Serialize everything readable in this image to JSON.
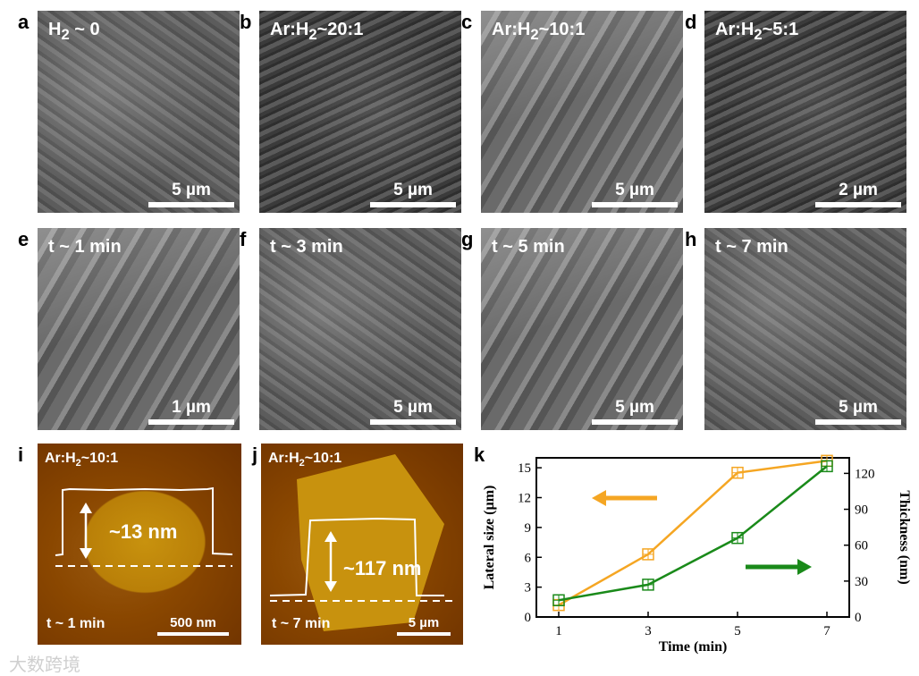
{
  "sem_panels": [
    {
      "letter": "a",
      "condition_html": "H<sub>2</sub> ~ 0",
      "scale": "5 µm"
    },
    {
      "letter": "b",
      "condition_html": "Ar:H<sub>2</sub>~20:1",
      "scale": "5 µm"
    },
    {
      "letter": "c",
      "condition_html": "Ar:H<sub>2</sub>~10:1",
      "scale": "5 µm"
    },
    {
      "letter": "d",
      "condition_html": "Ar:H<sub>2</sub>~5:1",
      "scale": "2 µm"
    },
    {
      "letter": "e",
      "condition_html": "t ~ 1 min",
      "scale": "1 µm"
    },
    {
      "letter": "f",
      "condition_html": "t ~ 3 min",
      "scale": "5 µm"
    },
    {
      "letter": "g",
      "condition_html": "t ~ 5 min",
      "scale": "5 µm"
    },
    {
      "letter": "h",
      "condition_html": "t ~ 7 min",
      "scale": "5 µm"
    }
  ],
  "afm_panels": [
    {
      "letter": "i",
      "condition": "Ar:H",
      "condition_sub": "2",
      "condition_tail": "~10:1",
      "height": "~13 nm",
      "time": "t ~ 1 min",
      "scale": "500 nm"
    },
    {
      "letter": "j",
      "condition": "Ar:H",
      "condition_sub": "2",
      "condition_tail": "~10:1",
      "height": "~117 nm",
      "time": "t ~ 7 min",
      "scale": "5 µm"
    }
  ],
  "chart_label": "k",
  "chart_data": {
    "type": "line",
    "x": [
      1,
      3,
      5,
      7
    ],
    "xlabel": "Time (min)",
    "xticks": [
      "1",
      "3",
      "5",
      "7"
    ],
    "series": [
      {
        "name": "",
        "axis": "left",
        "color": "#f5a623",
        "values": [
          1.2,
          6.3,
          14.5,
          15.7
        ]
      },
      {
        "name": "",
        "axis": "right",
        "color": "#1a8a1a",
        "values": [
          14,
          27,
          66,
          126
        ]
      }
    ],
    "ylabel_left": "Lateral size (µm)",
    "ylim_left": [
      0,
      16
    ],
    "yticks_left": [
      "0",
      "3",
      "6",
      "9",
      "12",
      "15"
    ],
    "ylabel_right": "Thickness (nm)",
    "ylim_right": [
      0,
      133
    ],
    "yticks_right": [
      "0",
      "30",
      "60",
      "90",
      "120"
    ]
  },
  "watermark": "大数跨境"
}
